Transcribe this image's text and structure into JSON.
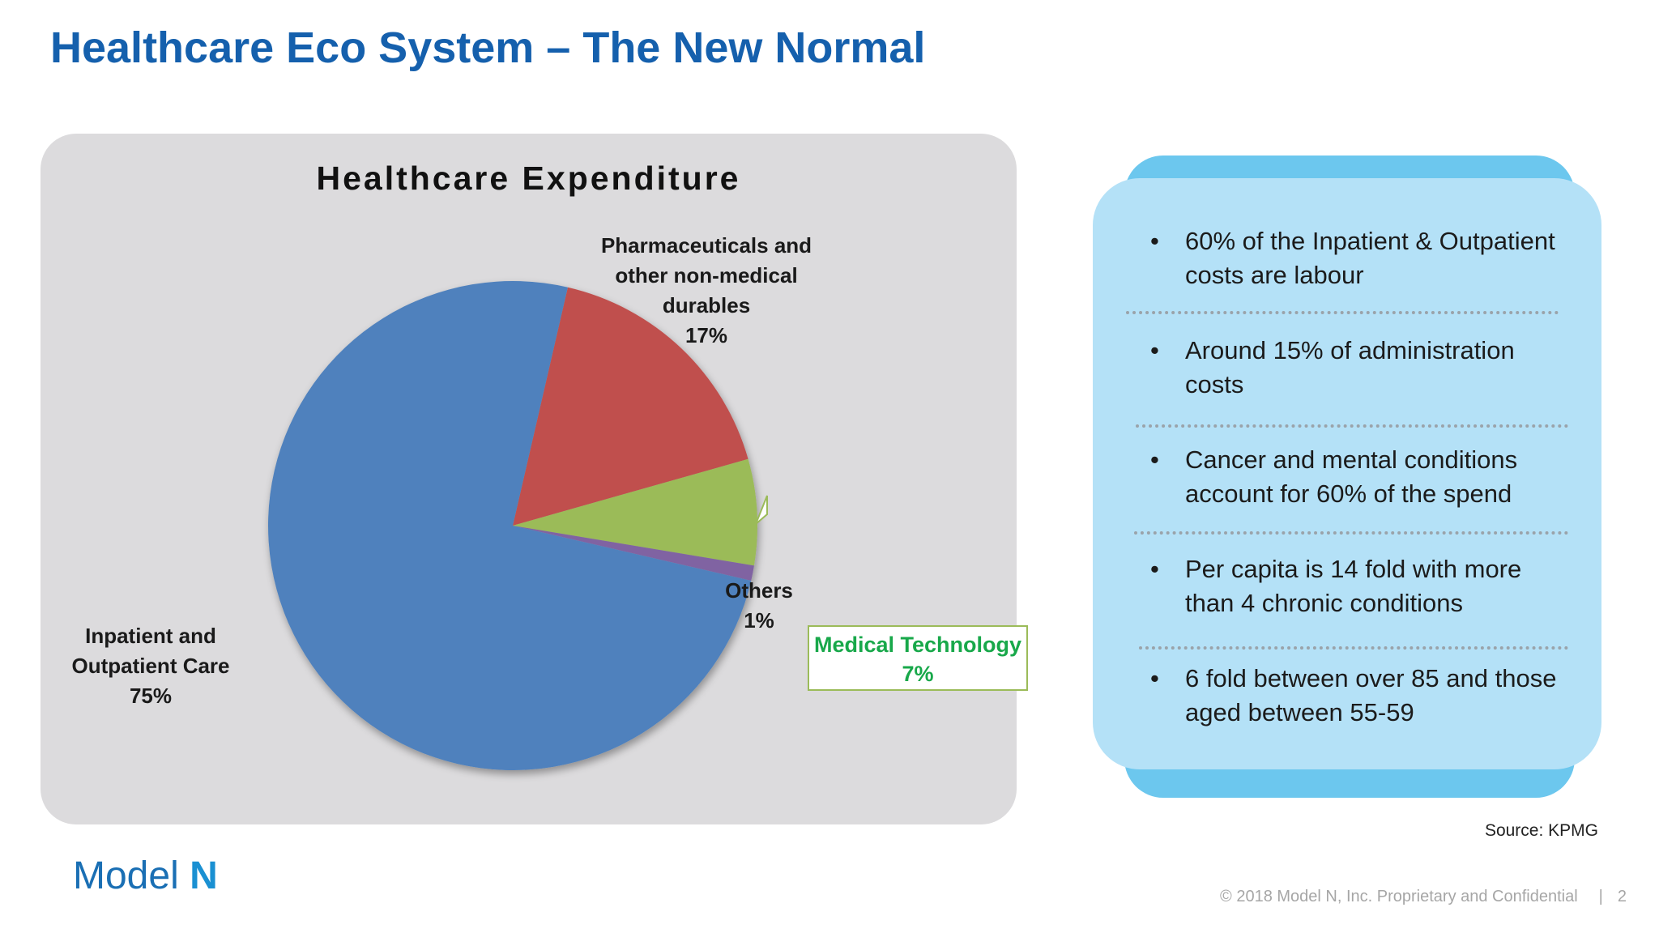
{
  "slide": {
    "title": "Healthcare Eco System – The New Normal",
    "source": "Source: KPMG",
    "logo_light": "Model ",
    "logo_bold": "N",
    "footer_text": "© 2018 Model N, Inc. Proprietary and Confidential",
    "footer_divider": "|",
    "page_number": "2"
  },
  "chart_data": {
    "type": "pie",
    "title": "Healthcare Expenditure",
    "slices": [
      {
        "label": "Inpatient and Outpatient Care",
        "label_lines": [
          "Inpatient and",
          "Outpatient Care"
        ],
        "value": 75,
        "value_label": "75%",
        "color": "#4f81bd"
      },
      {
        "label": "Pharmaceuticals and other non-medical durables",
        "label_lines": [
          "Pharmaceuticals and",
          "other non-medical",
          "durables"
        ],
        "value": 17,
        "value_label": "17%",
        "color": "#c0504d"
      },
      {
        "label": "Medical Technology",
        "label_lines": [
          "Medical Technology"
        ],
        "value": 7,
        "value_label": "7%",
        "color": "#9bbb59",
        "highlight_color": "#18a84a"
      },
      {
        "label": "Others",
        "label_lines": [
          "Others"
        ],
        "value": 1,
        "value_label": "1%",
        "color": "#8064a2"
      }
    ]
  },
  "insights": {
    "items": [
      {
        "text": "60% of the Inpatient & Outpatient costs are labour"
      },
      {
        "text": "Around 15% of administration costs"
      },
      {
        "text": "Cancer and mental conditions account for 60% of the spend"
      },
      {
        "text": "Per capita is 14 fold with more than 4 chronic conditions"
      },
      {
        "text": "6 fold between over 85 and those aged between 55-59"
      }
    ],
    "bullet": "•"
  }
}
